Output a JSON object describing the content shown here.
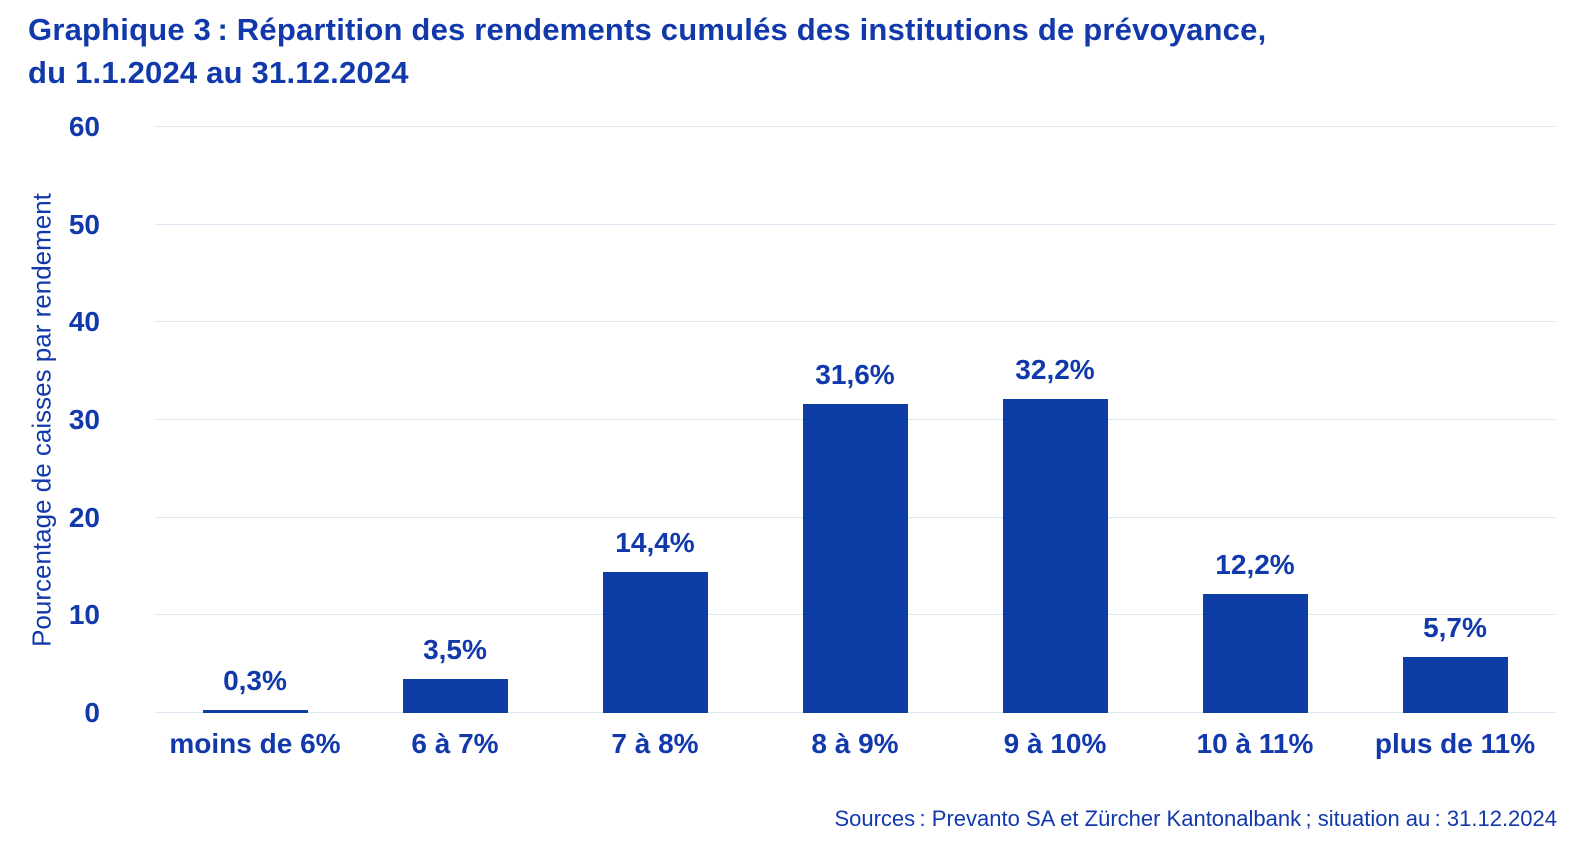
{
  "header": {
    "title_line1": "Graphique 3 : Répartition des rendements cumulés des institutions de prévoyance,",
    "title_line2": "du 1.1.2024 au 31.12.2024"
  },
  "chart_data": {
    "type": "bar",
    "title": "Graphique 3 : Répartition des rendements cumulés des institutions de prévoyance, du 1.1.2024 au 31.12.2024",
    "categories": [
      "moins de 6%",
      "6 à 7%",
      "7 à 8%",
      "8 à 9%",
      "9 à 10%",
      "10 à 11%",
      "plus de 11%"
    ],
    "values": [
      0.3,
      3.5,
      14.4,
      31.6,
      32.2,
      12.2,
      5.7
    ],
    "value_labels": [
      "0,3%",
      "3,5%",
      "14,4%",
      "31,6%",
      "32,2%",
      "12,2%",
      "5,7%"
    ],
    "xlabel": "",
    "ylabel": "Pourcentage de caisses par rendement",
    "ylim": [
      0,
      60
    ],
    "yticks": [
      0,
      10,
      20,
      30,
      40,
      50,
      60
    ],
    "grid": true,
    "legend": false,
    "colors": {
      "bar": "#0d3ea6",
      "text": "#1139ab",
      "gridline": "#dbe6f2",
      "background": "#ffffff"
    }
  },
  "footer": {
    "source": "Sources : Prevanto SA et Zürcher Kantonalbank ; situation au : 31.12.2024"
  }
}
